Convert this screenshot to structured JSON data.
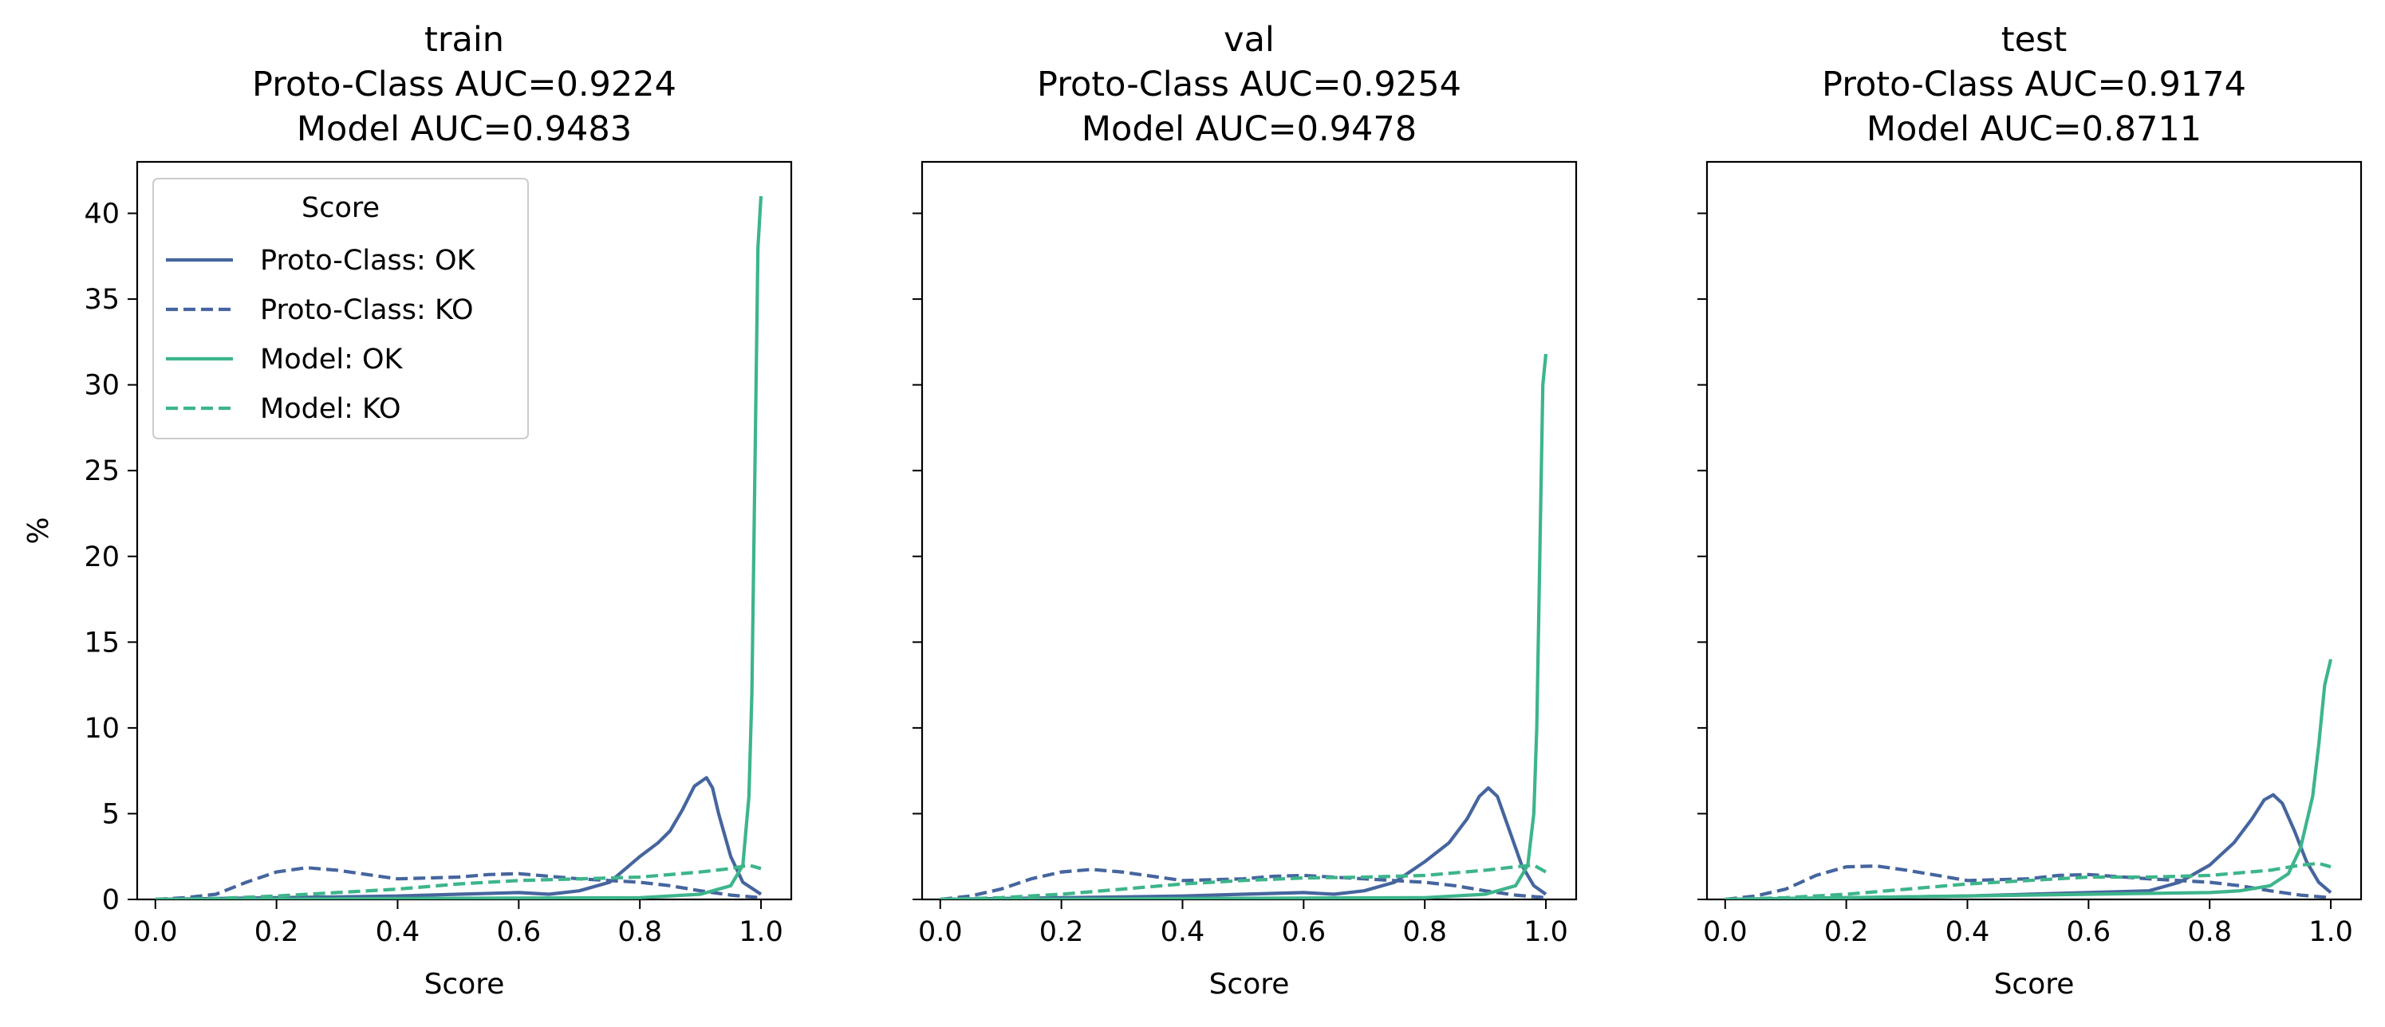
{
  "chart_data": [
    {
      "type": "line",
      "title": "train\nProto-Class AUC=0.9224\nModel AUC=0.9483",
      "xlabel": "Score",
      "ylabel": "%",
      "xlim": [
        -0.03,
        1.05
      ],
      "ylim": [
        0,
        43
      ],
      "xticks": [
        0.0,
        0.2,
        0.4,
        0.6,
        0.8,
        1.0
      ],
      "xtick_labels": [
        "0.0",
        "0.2",
        "0.4",
        "0.6",
        "0.8",
        "1.0"
      ],
      "yticks": [
        0,
        5,
        10,
        15,
        20,
        25,
        30,
        35,
        40
      ],
      "ytick_labels": [
        "0",
        "5",
        "10",
        "15",
        "20",
        "25",
        "30",
        "35",
        "40"
      ],
      "show_ytick_labels": true,
      "grid": false,
      "legend": {
        "title": "Score",
        "placement": "upper-left",
        "entries": [
          "Proto-Class: OK",
          "Proto-Class: KO",
          "Model: OK",
          "Model: KO"
        ]
      },
      "series": [
        {
          "name": "Proto-Class: OK",
          "color": "#46659e",
          "dash": "solid",
          "x": [
            0.0,
            0.1,
            0.2,
            0.3,
            0.4,
            0.5,
            0.6,
            0.65,
            0.7,
            0.75,
            0.8,
            0.83,
            0.85,
            0.87,
            0.89,
            0.91,
            0.92,
            0.93,
            0.95,
            0.97,
            1.0
          ],
          "y": [
            0.0,
            0.05,
            0.1,
            0.15,
            0.2,
            0.3,
            0.4,
            0.3,
            0.5,
            1.0,
            2.5,
            3.3,
            4.0,
            5.2,
            6.6,
            7.1,
            6.5,
            5.0,
            2.5,
            1.0,
            0.3
          ]
        },
        {
          "name": "Proto-Class: KO",
          "color": "#46659e",
          "dash": "dashed",
          "x": [
            0.0,
            0.05,
            0.1,
            0.15,
            0.2,
            0.25,
            0.3,
            0.4,
            0.5,
            0.55,
            0.6,
            0.7,
            0.8,
            0.85,
            0.9,
            0.95,
            1.0
          ],
          "y": [
            0.0,
            0.1,
            0.3,
            1.0,
            1.6,
            1.85,
            1.7,
            1.2,
            1.3,
            1.45,
            1.5,
            1.2,
            1.0,
            0.8,
            0.5,
            0.25,
            0.1
          ]
        },
        {
          "name": "Model: OK",
          "color": "#3db58a",
          "dash": "solid",
          "x": [
            0.0,
            0.2,
            0.4,
            0.6,
            0.8,
            0.9,
            0.95,
            0.97,
            0.98,
            0.985,
            0.99,
            0.995,
            1.0
          ],
          "y": [
            0.0,
            0.02,
            0.05,
            0.08,
            0.1,
            0.3,
            0.8,
            2.0,
            6.0,
            12.0,
            25.0,
            38.0,
            41.0
          ]
        },
        {
          "name": "Model: KO",
          "color": "#3db58a",
          "dash": "dashed",
          "x": [
            0.0,
            0.1,
            0.2,
            0.3,
            0.4,
            0.5,
            0.6,
            0.7,
            0.8,
            0.9,
            0.95,
            0.98,
            1.0
          ],
          "y": [
            0.0,
            0.05,
            0.2,
            0.4,
            0.6,
            0.9,
            1.1,
            1.2,
            1.3,
            1.6,
            1.8,
            2.0,
            1.8
          ]
        }
      ]
    },
    {
      "type": "line",
      "title": "val\nProto-Class AUC=0.9254\nModel AUC=0.9478",
      "xlabel": "Score",
      "ylabel": "",
      "xlim": [
        -0.03,
        1.05
      ],
      "ylim": [
        0,
        43
      ],
      "xticks": [
        0.0,
        0.2,
        0.4,
        0.6,
        0.8,
        1.0
      ],
      "xtick_labels": [
        "0.0",
        "0.2",
        "0.4",
        "0.6",
        "0.8",
        "1.0"
      ],
      "yticks": [
        0,
        5,
        10,
        15,
        20,
        25,
        30,
        35,
        40
      ],
      "ytick_labels": [
        "0",
        "5",
        "10",
        "15",
        "20",
        "25",
        "30",
        "35",
        "40"
      ],
      "show_ytick_labels": false,
      "grid": false,
      "series": [
        {
          "name": "Proto-Class: OK",
          "color": "#46659e",
          "dash": "solid",
          "x": [
            0.0,
            0.1,
            0.2,
            0.3,
            0.4,
            0.5,
            0.6,
            0.65,
            0.7,
            0.75,
            0.8,
            0.84,
            0.87,
            0.89,
            0.905,
            0.92,
            0.94,
            0.96,
            0.98,
            1.0
          ],
          "y": [
            0.0,
            0.05,
            0.1,
            0.15,
            0.2,
            0.3,
            0.4,
            0.3,
            0.5,
            1.0,
            2.2,
            3.3,
            4.7,
            6.0,
            6.5,
            6.0,
            4.0,
            2.0,
            0.8,
            0.3
          ]
        },
        {
          "name": "Proto-Class: KO",
          "color": "#46659e",
          "dash": "dashed",
          "x": [
            0.0,
            0.05,
            0.1,
            0.15,
            0.2,
            0.25,
            0.3,
            0.4,
            0.5,
            0.55,
            0.6,
            0.7,
            0.8,
            0.85,
            0.9,
            0.95,
            1.0
          ],
          "y": [
            0.0,
            0.2,
            0.6,
            1.2,
            1.6,
            1.75,
            1.6,
            1.1,
            1.2,
            1.35,
            1.4,
            1.2,
            1.0,
            0.8,
            0.5,
            0.25,
            0.1
          ]
        },
        {
          "name": "Model: OK",
          "color": "#3db58a",
          "dash": "solid",
          "x": [
            0.0,
            0.2,
            0.4,
            0.6,
            0.8,
            0.9,
            0.95,
            0.97,
            0.98,
            0.985,
            0.99,
            0.995,
            1.0
          ],
          "y": [
            0.0,
            0.02,
            0.05,
            0.08,
            0.1,
            0.3,
            0.8,
            2.0,
            5.0,
            10.0,
            20.0,
            30.0,
            31.8
          ]
        },
        {
          "name": "Model: KO",
          "color": "#3db58a",
          "dash": "dashed",
          "x": [
            0.0,
            0.1,
            0.2,
            0.3,
            0.4,
            0.5,
            0.6,
            0.7,
            0.8,
            0.9,
            0.95,
            0.98,
            1.0
          ],
          "y": [
            0.0,
            0.1,
            0.3,
            0.6,
            0.9,
            1.1,
            1.25,
            1.3,
            1.4,
            1.7,
            1.9,
            2.0,
            1.6
          ]
        }
      ]
    },
    {
      "type": "line",
      "title": "test\nProto-Class AUC=0.9174\nModel AUC=0.8711",
      "xlabel": "Score",
      "ylabel": "",
      "xlim": [
        -0.03,
        1.05
      ],
      "ylim": [
        0,
        43
      ],
      "xticks": [
        0.0,
        0.2,
        0.4,
        0.6,
        0.8,
        1.0
      ],
      "xtick_labels": [
        "0.0",
        "0.2",
        "0.4",
        "0.6",
        "0.8",
        "1.0"
      ],
      "yticks": [
        0,
        5,
        10,
        15,
        20,
        25,
        30,
        35,
        40
      ],
      "ytick_labels": [
        "0",
        "5",
        "10",
        "15",
        "20",
        "25",
        "30",
        "35",
        "40"
      ],
      "show_ytick_labels": false,
      "grid": false,
      "series": [
        {
          "name": "Proto-Class: OK",
          "color": "#46659e",
          "dash": "solid",
          "x": [
            0.0,
            0.1,
            0.2,
            0.3,
            0.4,
            0.5,
            0.6,
            0.7,
            0.75,
            0.8,
            0.84,
            0.87,
            0.89,
            0.905,
            0.92,
            0.94,
            0.96,
            0.98,
            1.0
          ],
          "y": [
            0.0,
            0.05,
            0.1,
            0.15,
            0.2,
            0.3,
            0.4,
            0.5,
            1.0,
            2.0,
            3.3,
            4.7,
            5.8,
            6.1,
            5.6,
            4.0,
            2.2,
            1.0,
            0.4
          ]
        },
        {
          "name": "Proto-Class: KO",
          "color": "#46659e",
          "dash": "dashed",
          "x": [
            0.0,
            0.05,
            0.1,
            0.15,
            0.2,
            0.25,
            0.3,
            0.4,
            0.5,
            0.55,
            0.6,
            0.7,
            0.8,
            0.85,
            0.9,
            0.95,
            1.0
          ],
          "y": [
            0.0,
            0.2,
            0.6,
            1.4,
            1.9,
            1.95,
            1.7,
            1.1,
            1.2,
            1.4,
            1.45,
            1.2,
            1.0,
            0.8,
            0.5,
            0.25,
            0.1
          ]
        },
        {
          "name": "Model: OK",
          "color": "#3db58a",
          "dash": "solid",
          "x": [
            0.0,
            0.2,
            0.4,
            0.6,
            0.8,
            0.85,
            0.9,
            0.93,
            0.95,
            0.97,
            0.98,
            0.99,
            1.0
          ],
          "y": [
            0.0,
            0.1,
            0.2,
            0.3,
            0.4,
            0.5,
            0.8,
            1.5,
            3.0,
            6.0,
            9.0,
            12.5,
            14.0
          ]
        },
        {
          "name": "Model: KO",
          "color": "#3db58a",
          "dash": "dashed",
          "x": [
            0.0,
            0.1,
            0.2,
            0.3,
            0.4,
            0.5,
            0.6,
            0.7,
            0.8,
            0.9,
            0.95,
            0.98,
            1.0
          ],
          "y": [
            0.0,
            0.1,
            0.3,
            0.6,
            0.9,
            1.1,
            1.3,
            1.3,
            1.4,
            1.7,
            2.0,
            2.1,
            1.9
          ]
        }
      ]
    }
  ]
}
